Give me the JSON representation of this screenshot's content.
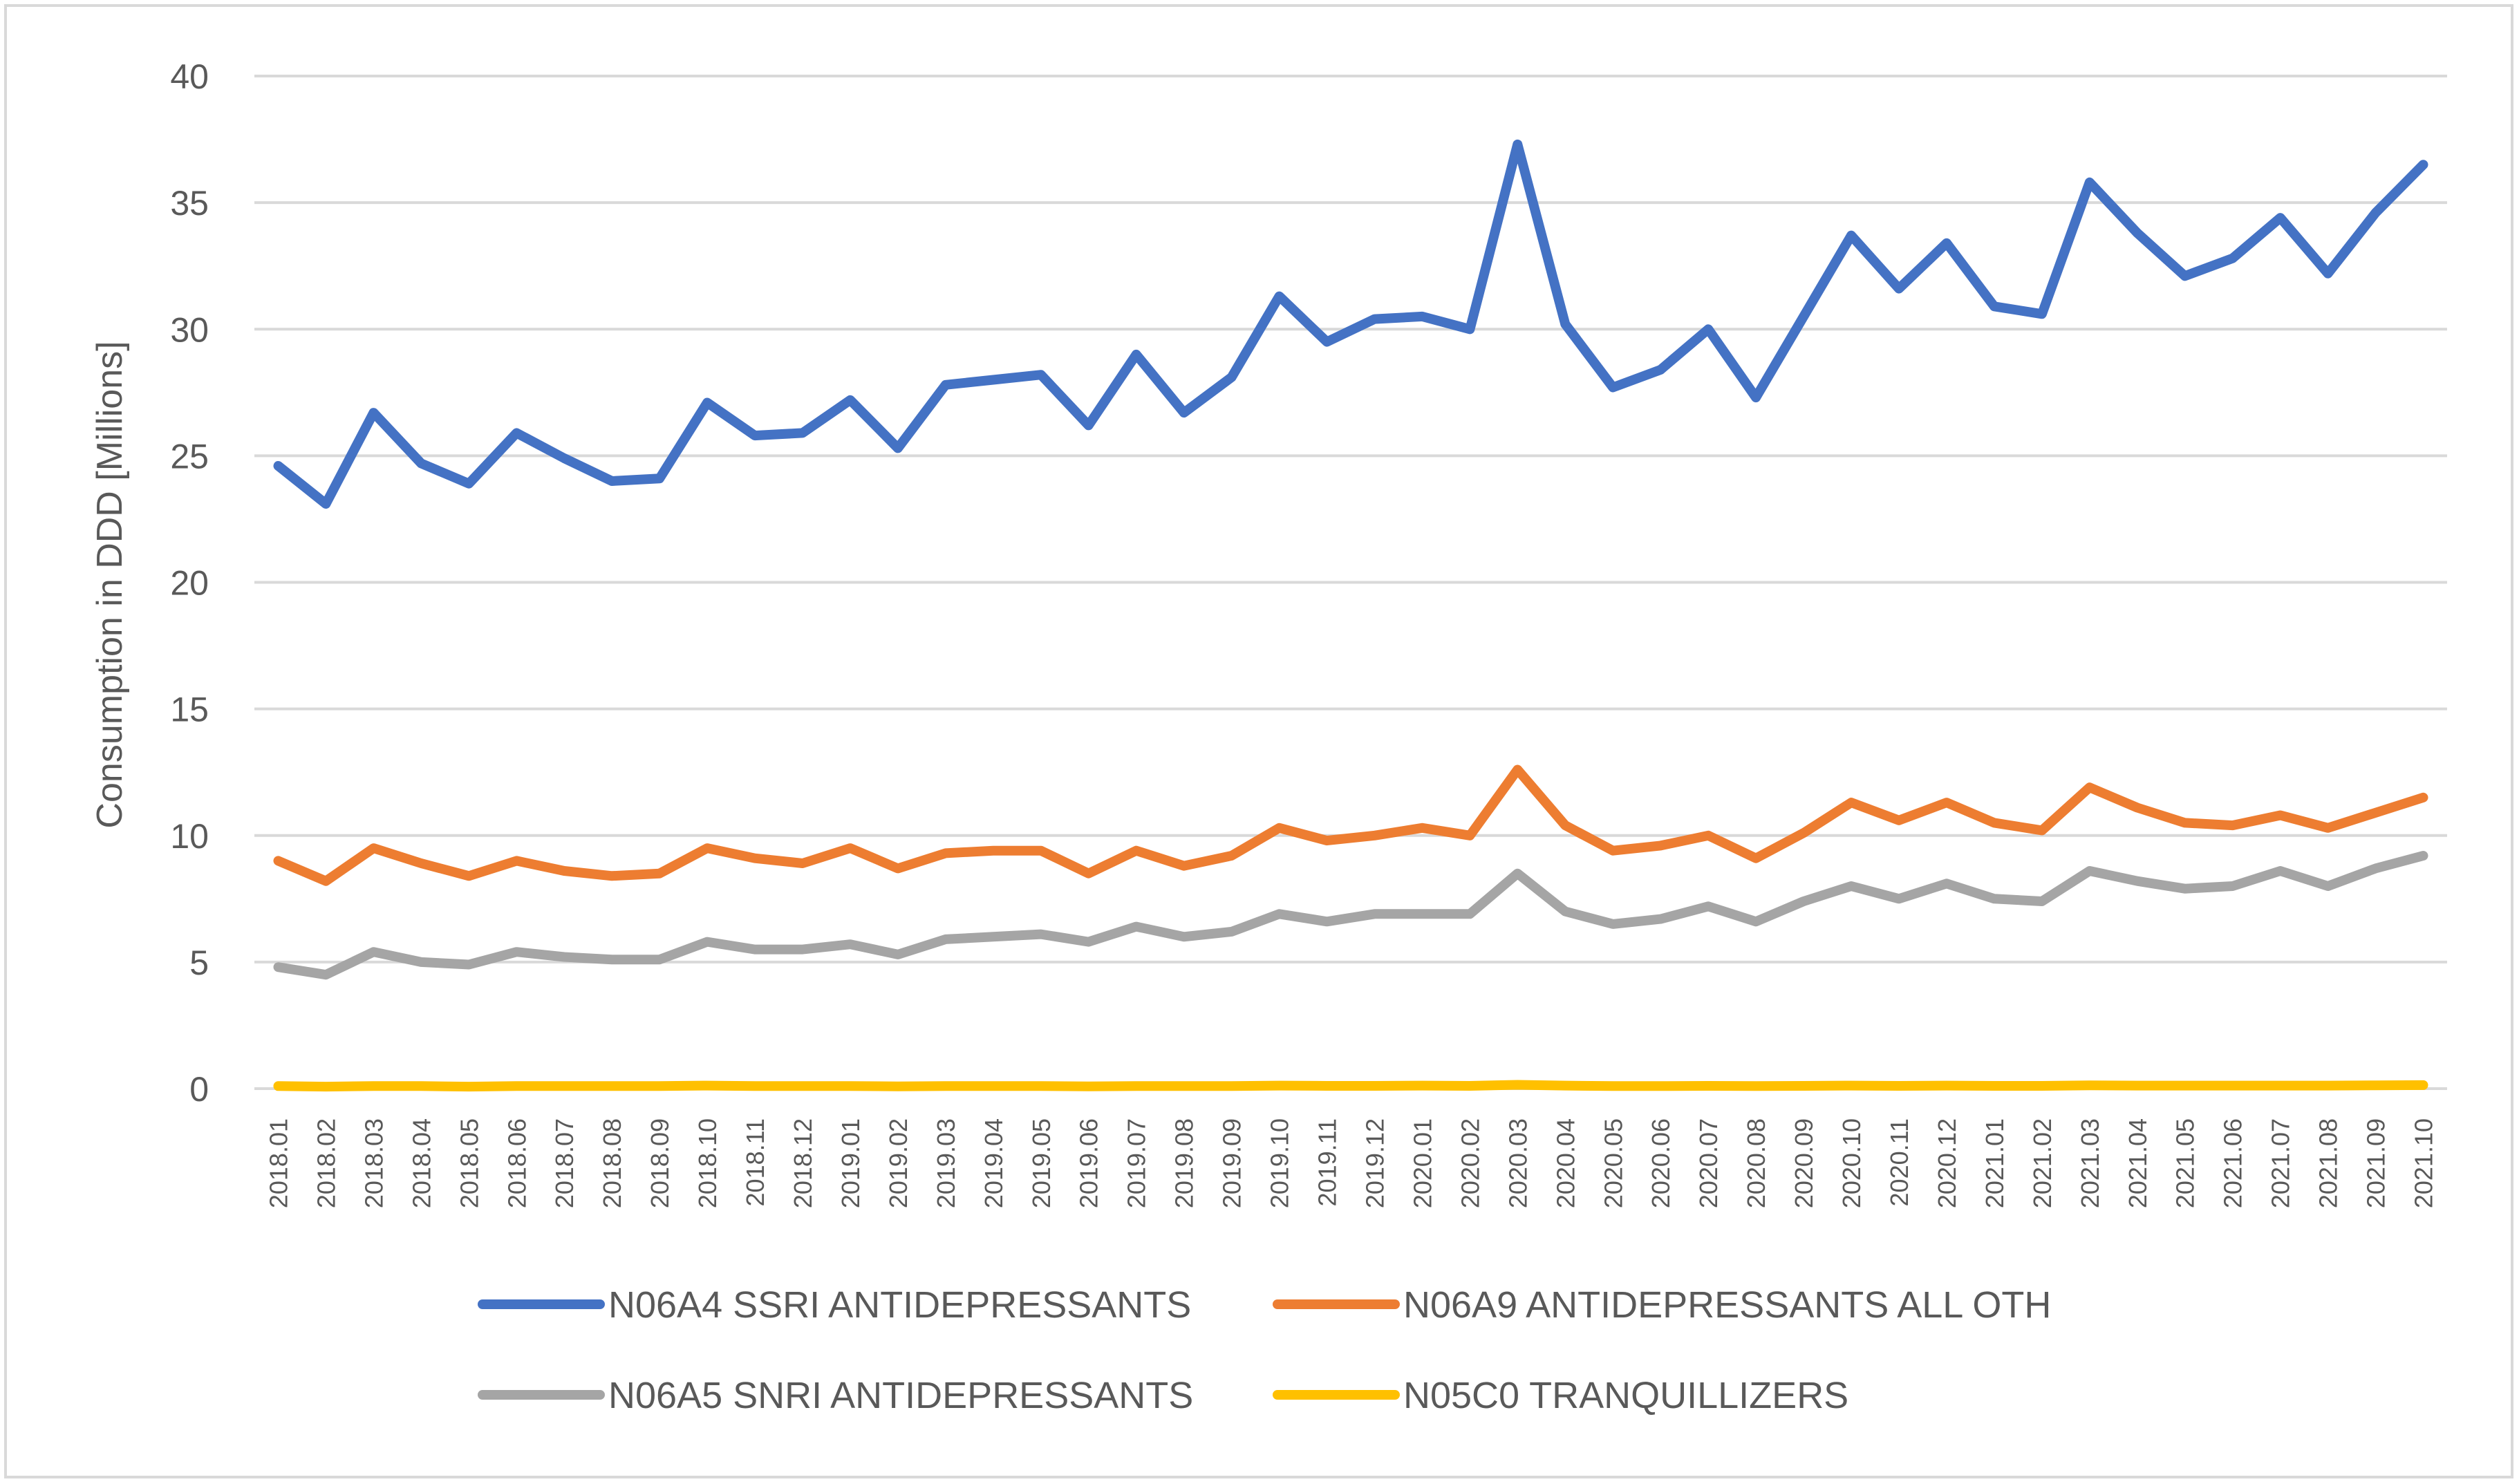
{
  "chart_data": {
    "type": "line",
    "title": "",
    "xlabel": "",
    "ylabel": "Consumption in DDD [Millions]",
    "ylim": [
      0,
      40
    ],
    "yticks": [
      0,
      5,
      10,
      15,
      20,
      25,
      30,
      35,
      40
    ],
    "grid": true,
    "legend_position": "bottom",
    "categories": [
      "2018.01",
      "2018.02",
      "2018.03",
      "2018.04",
      "2018.05",
      "2018.06",
      "2018.07",
      "2018.08",
      "2018.09",
      "2018.10",
      "2018.11",
      "2018.12",
      "2019.01",
      "2019.02",
      "2019.03",
      "2019.04",
      "2019.05",
      "2019.06",
      "2019.07",
      "2019.08",
      "2019.09",
      "2019.10",
      "2019.11",
      "2019.12",
      "2020.01",
      "2020.02",
      "2020.03",
      "2020.04",
      "2020.05",
      "2020.06",
      "2020.07",
      "2020.08",
      "2020.09",
      "2020.10",
      "2020.11",
      "2020.12",
      "2021.01",
      "2021.02",
      "2021.03",
      "2021.04",
      "2021.05",
      "2021.06",
      "2021.07",
      "2021.08",
      "2021.09",
      "2021.10"
    ],
    "series": [
      {
        "name": "N06A4 SSRI ANTIDEPRESSANTS",
        "color": "#4472C4",
        "values": [
          24.6,
          23.1,
          26.7,
          24.7,
          23.9,
          25.9,
          24.9,
          24.0,
          24.1,
          27.1,
          25.8,
          25.9,
          27.2,
          25.3,
          27.8,
          28.0,
          28.2,
          26.2,
          29.0,
          26.7,
          28.1,
          31.3,
          29.5,
          30.4,
          30.5,
          30.0,
          37.3,
          30.2,
          27.7,
          28.4,
          30.0,
          27.3,
          30.5,
          33.7,
          31.6,
          33.4,
          30.9,
          30.6,
          35.8,
          33.8,
          32.1,
          32.8,
          34.4,
          32.2,
          34.6,
          36.5
        ]
      },
      {
        "name": "N06A9 ANTIDEPRESSANTS ALL OTH",
        "color": "#ED7D31",
        "values": [
          9.0,
          8.2,
          9.5,
          8.9,
          8.4,
          9.0,
          8.6,
          8.4,
          8.5,
          9.5,
          9.1,
          8.9,
          9.5,
          8.7,
          9.3,
          9.4,
          9.4,
          8.5,
          9.4,
          8.8,
          9.2,
          10.3,
          9.8,
          10.0,
          10.3,
          10.0,
          12.6,
          10.4,
          9.4,
          9.6,
          10.0,
          9.1,
          10.1,
          11.3,
          10.6,
          11.3,
          10.5,
          10.2,
          11.9,
          11.1,
          10.5,
          10.4,
          10.8,
          10.3,
          10.9,
          11.5
        ]
      },
      {
        "name": "N06A5 SNRI ANTIDEPRESSANTS",
        "color": "#A5A5A5",
        "values": [
          4.8,
          4.5,
          5.4,
          5.0,
          4.9,
          5.4,
          5.2,
          5.1,
          5.1,
          5.8,
          5.5,
          5.5,
          5.7,
          5.3,
          5.9,
          6.0,
          6.1,
          5.8,
          6.4,
          6.0,
          6.2,
          6.9,
          6.6,
          6.9,
          6.9,
          6.9,
          8.5,
          7.0,
          6.5,
          6.7,
          7.2,
          6.6,
          7.4,
          8.0,
          7.5,
          8.1,
          7.5,
          7.4,
          8.6,
          8.2,
          7.9,
          8.0,
          8.6,
          8.0,
          8.7,
          9.2
        ]
      },
      {
        "name": "N05C0 TRANQUILLIZERS",
        "color": "#FFC000",
        "values": [
          0.1,
          0.08,
          0.1,
          0.1,
          0.08,
          0.1,
          0.1,
          0.1,
          0.1,
          0.12,
          0.1,
          0.1,
          0.1,
          0.09,
          0.1,
          0.1,
          0.1,
          0.09,
          0.1,
          0.1,
          0.1,
          0.12,
          0.11,
          0.11,
          0.12,
          0.11,
          0.15,
          0.12,
          0.1,
          0.1,
          0.11,
          0.1,
          0.11,
          0.12,
          0.11,
          0.12,
          0.11,
          0.11,
          0.13,
          0.12,
          0.12,
          0.12,
          0.12,
          0.12,
          0.13,
          0.14
        ]
      }
    ]
  }
}
